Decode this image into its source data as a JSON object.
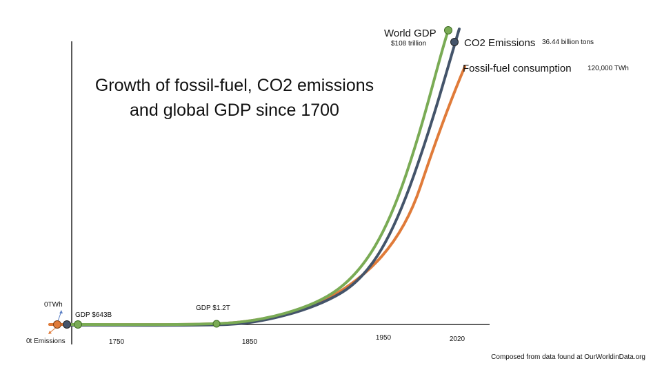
{
  "chart_data": {
    "type": "line",
    "title": "Growth of fossil-fuel, CO2 emissions and global GDP since 1700",
    "title_lines": [
      "Growth of fossil-fuel, CO2 emissions",
      "and global GDP since 1700"
    ],
    "x_tick_labels": [
      "1750",
      "1850",
      "1950",
      "2020"
    ],
    "grid": false,
    "series": [
      {
        "name": "World GDP",
        "color": "#7aab55",
        "end_value": "$108 trillion",
        "x": [
          1700,
          1800,
          1900,
          1950,
          2000,
          2020
        ],
        "values": [
          0.01,
          0.01,
          0.08,
          0.32,
          0.86,
          1.0
        ]
      },
      {
        "name": "CO2 Emissions",
        "color": "#44546a",
        "end_value": "36.44 billion tons",
        "x": [
          1700,
          1800,
          1900,
          1950,
          2000,
          2020
        ],
        "values": [
          0.0,
          0.0,
          0.07,
          0.28,
          0.8,
          0.98
        ]
      },
      {
        "name": "Fossil-fuel consumption",
        "color": "#e07b39",
        "end_value": "120,000 TWh",
        "x": [
          1700,
          1800,
          1900,
          1950,
          2000,
          2020
        ],
        "values": [
          0.0,
          0.0,
          0.07,
          0.25,
          0.7,
          0.86
        ]
      }
    ],
    "annotations": {
      "start_twh": "0TWh",
      "start_emissions": "0t Emissions",
      "gdp_start": "GDP $643B",
      "gdp_mid": "GDP $1.2T"
    }
  },
  "source": "Composed from data found at OurWorldinData.org"
}
